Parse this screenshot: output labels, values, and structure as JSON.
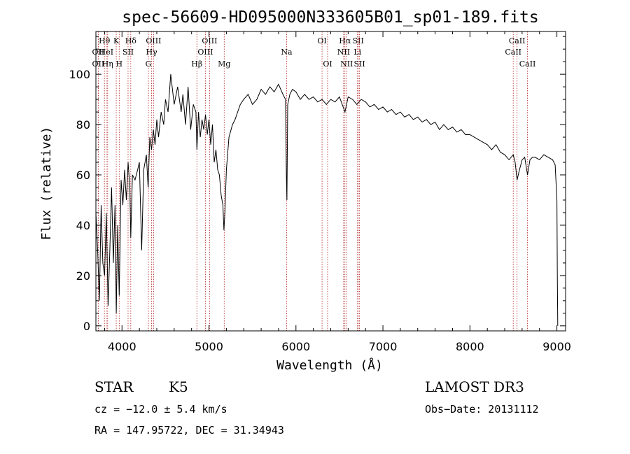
{
  "chart_data": {
    "type": "line",
    "title": "spec-56609-HD095000N333605B01_sp01-189.fits",
    "xlabel": "Wavelength (Å)",
    "ylabel": "Flux (relative)",
    "xlim": [
      3700,
      9100
    ],
    "ylim": [
      -2,
      117
    ],
    "x_ticks": [
      "4000",
      "5000",
      "6000",
      "7000",
      "8000",
      "9000"
    ],
    "y_ticks": [
      "0",
      "20",
      "40",
      "60",
      "80",
      "100"
    ],
    "grid": false,
    "series": [
      {
        "x": [
          3700,
          3720,
          3740,
          3760,
          3780,
          3800,
          3820,
          3840,
          3860,
          3880,
          3900,
          3920,
          3934,
          3950,
          3968,
          3990,
          4010,
          4030,
          4050,
          4070,
          4090,
          4101,
          4120,
          4150,
          4180,
          4200,
          4226,
          4250,
          4280,
          4300,
          4320,
          4340,
          4360,
          4380,
          4400,
          4420,
          4450,
          4480,
          4500,
          4530,
          4560,
          4600,
          4640,
          4680,
          4700,
          4730,
          4760,
          4790,
          4820,
          4850,
          4861,
          4880,
          4900,
          4920,
          4940,
          4960,
          4980,
          5000,
          5020,
          5040,
          5060,
          5080,
          5100,
          5120,
          5140,
          5160,
          5172,
          5183,
          5200,
          5230,
          5270,
          5300,
          5330,
          5360,
          5400,
          5450,
          5500,
          5550,
          5600,
          5650,
          5700,
          5750,
          5800,
          5850,
          5880,
          5890,
          5896,
          5905,
          5930,
          5960,
          6000,
          6050,
          6100,
          6150,
          6200,
          6250,
          6300,
          6350,
          6400,
          6450,
          6500,
          6563,
          6600,
          6650,
          6700,
          6750,
          6800,
          6850,
          6900,
          6950,
          7000,
          7050,
          7100,
          7150,
          7200,
          7250,
          7300,
          7350,
          7400,
          7450,
          7500,
          7550,
          7600,
          7650,
          7700,
          7750,
          7800,
          7850,
          7900,
          7950,
          8000,
          8050,
          8100,
          8150,
          8200,
          8250,
          8300,
          8350,
          8400,
          8450,
          8498,
          8520,
          8542,
          8570,
          8600,
          8630,
          8662,
          8690,
          8720,
          8750,
          8800,
          8850,
          8900,
          8950,
          8980,
          9000,
          9005,
          9010
        ],
        "y": [
          45,
          30,
          10,
          48,
          25,
          20,
          45,
          8,
          30,
          55,
          25,
          48,
          5,
          40,
          12,
          58,
          48,
          62,
          50,
          65,
          55,
          35,
          60,
          58,
          62,
          65,
          30,
          62,
          68,
          55,
          75,
          70,
          78,
          72,
          82,
          75,
          85,
          80,
          90,
          85,
          100,
          88,
          95,
          85,
          92,
          80,
          95,
          78,
          88,
          85,
          70,
          85,
          75,
          82,
          78,
          84,
          76,
          82,
          72,
          80,
          65,
          70,
          62,
          60,
          52,
          48,
          38,
          45,
          62,
          75,
          80,
          82,
          85,
          88,
          90,
          92,
          88,
          90,
          94,
          92,
          95,
          93,
          96,
          92,
          90,
          60,
          50,
          88,
          92,
          94,
          93,
          90,
          92,
          90,
          91,
          89,
          90,
          88,
          90,
          89,
          91,
          85,
          91,
          90,
          88,
          90,
          89,
          87,
          88,
          86,
          87,
          85,
          86,
          84,
          85,
          83,
          84,
          82,
          83,
          81,
          82,
          80,
          81,
          78,
          80,
          78,
          79,
          77,
          78,
          76,
          76,
          75,
          74,
          73,
          72,
          70,
          72,
          69,
          68,
          66,
          68,
          65,
          58,
          62,
          66,
          67,
          60,
          66,
          67,
          67,
          66,
          68,
          67,
          66,
          64,
          50,
          20,
          0
        ]
      }
    ],
    "line_markers": [
      {
        "label": "Hθ",
        "x": 3798,
        "row": 1
      },
      {
        "label": "OII",
        "x": 3727,
        "row": 2
      },
      {
        "label": "OII",
        "x": 3727,
        "row": 3
      },
      {
        "label": "HeI",
        "x": 3820,
        "row": 2
      },
      {
        "label": "Hη",
        "x": 3835,
        "row": 3
      },
      {
        "label": "K",
        "x": 3934,
        "row": 1
      },
      {
        "label": "SII",
        "x": 4070,
        "row": 2
      },
      {
        "label": "H",
        "x": 3968,
        "row": 3
      },
      {
        "label": "Hδ",
        "x": 4101,
        "row": 1
      },
      {
        "label": "OIII",
        "x": 4363,
        "row": 1
      },
      {
        "label": "Hγ",
        "x": 4340,
        "row": 2
      },
      {
        "label": "G",
        "x": 4304,
        "row": 3
      },
      {
        "label": "OIII",
        "x": 5007,
        "row": 1
      },
      {
        "label": "OIII",
        "x": 4959,
        "row": 2
      },
      {
        "label": "Hβ",
        "x": 4861,
        "row": 3
      },
      {
        "label": "Mg",
        "x": 5175,
        "row": 3
      },
      {
        "label": "Na",
        "x": 5893,
        "row": 2
      },
      {
        "label": "OI",
        "x": 6300,
        "row": 1
      },
      {
        "label": "OI",
        "x": 6364,
        "row": 3
      },
      {
        "label": "Hα",
        "x": 6563,
        "row": 1
      },
      {
        "label": "SII",
        "x": 6716,
        "row": 1
      },
      {
        "label": "NII",
        "x": 6548,
        "row": 2
      },
      {
        "label": "Li",
        "x": 6708,
        "row": 2
      },
      {
        "label": "NII",
        "x": 6583,
        "row": 3
      },
      {
        "label": "SII",
        "x": 6731,
        "row": 3
      },
      {
        "label": "CaII",
        "x": 8542,
        "row": 1
      },
      {
        "label": "CaII",
        "x": 8498,
        "row": 2
      },
      {
        "label": "CaII",
        "x": 8662,
        "row": 3
      }
    ]
  },
  "info": {
    "object_class": "STAR",
    "subclass": "K5",
    "survey": "LAMOST DR3",
    "cz": "cz = −12.0 ± 5.4 km/s",
    "obs_date": "Obs−Date: 20131112",
    "coords": "RA = 147.95722, DEC =  31.34943"
  },
  "colors": {
    "spectrum": "#000000",
    "line_marker": "#b22222",
    "background": "#ffffff"
  }
}
